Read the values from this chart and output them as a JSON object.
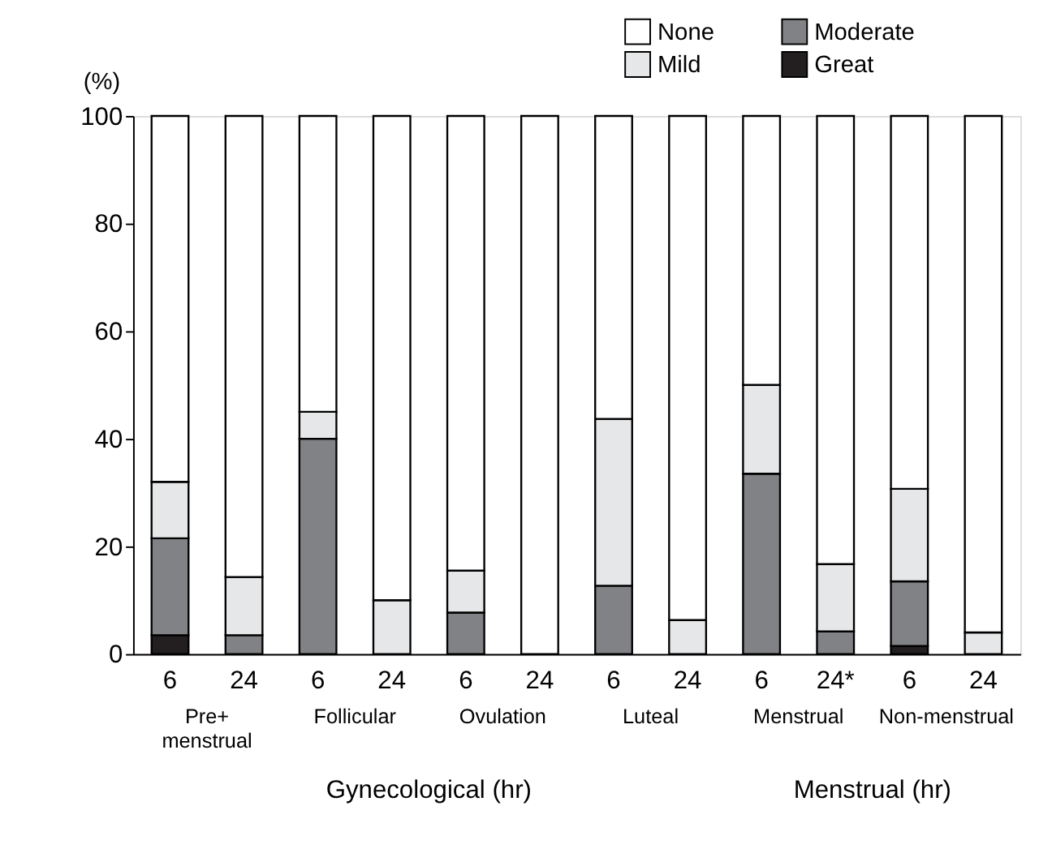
{
  "chart_data": {
    "type": "bar",
    "stacked": true,
    "ylabel": "(%)",
    "categories": [
      "6",
      "24",
      "6",
      "24",
      "6",
      "24",
      "6",
      "24",
      "6",
      "24*",
      "6",
      "24"
    ],
    "series": [
      {
        "name": "Great",
        "color": "#231f20",
        "values": [
          3.5,
          0,
          0,
          0,
          0,
          0,
          0,
          0,
          0,
          0,
          1.5,
          0
        ]
      },
      {
        "name": "Moderate",
        "color": "#808285",
        "values": [
          18,
          3.5,
          40,
          0,
          7.7,
          0,
          12.7,
          0,
          33.5,
          4.2,
          12,
          0
        ]
      },
      {
        "name": "Mild",
        "color": "#e6e7e8",
        "values": [
          10.5,
          10.8,
          5,
          10,
          7.8,
          0,
          31,
          6.3,
          16.5,
          12.5,
          17.2,
          4
        ]
      },
      {
        "name": "None",
        "color": "#ffffff",
        "values": [
          68,
          85.7,
          55,
          90,
          84.5,
          100,
          56.3,
          93.7,
          50,
          83.3,
          69.3,
          96
        ]
      }
    ],
    "ylim": [
      0,
      100
    ],
    "yticks": [
      0,
      20,
      40,
      60,
      80,
      100
    ],
    "grid": false,
    "legend": "top right",
    "annotations": [
      "Pre+ menstrual",
      "Follicular",
      "Ovulation",
      "Luteal",
      "Menstrual",
      "Non-menstrual",
      "Gynecological (hr)",
      "Menstrual (hr)"
    ]
  }
}
